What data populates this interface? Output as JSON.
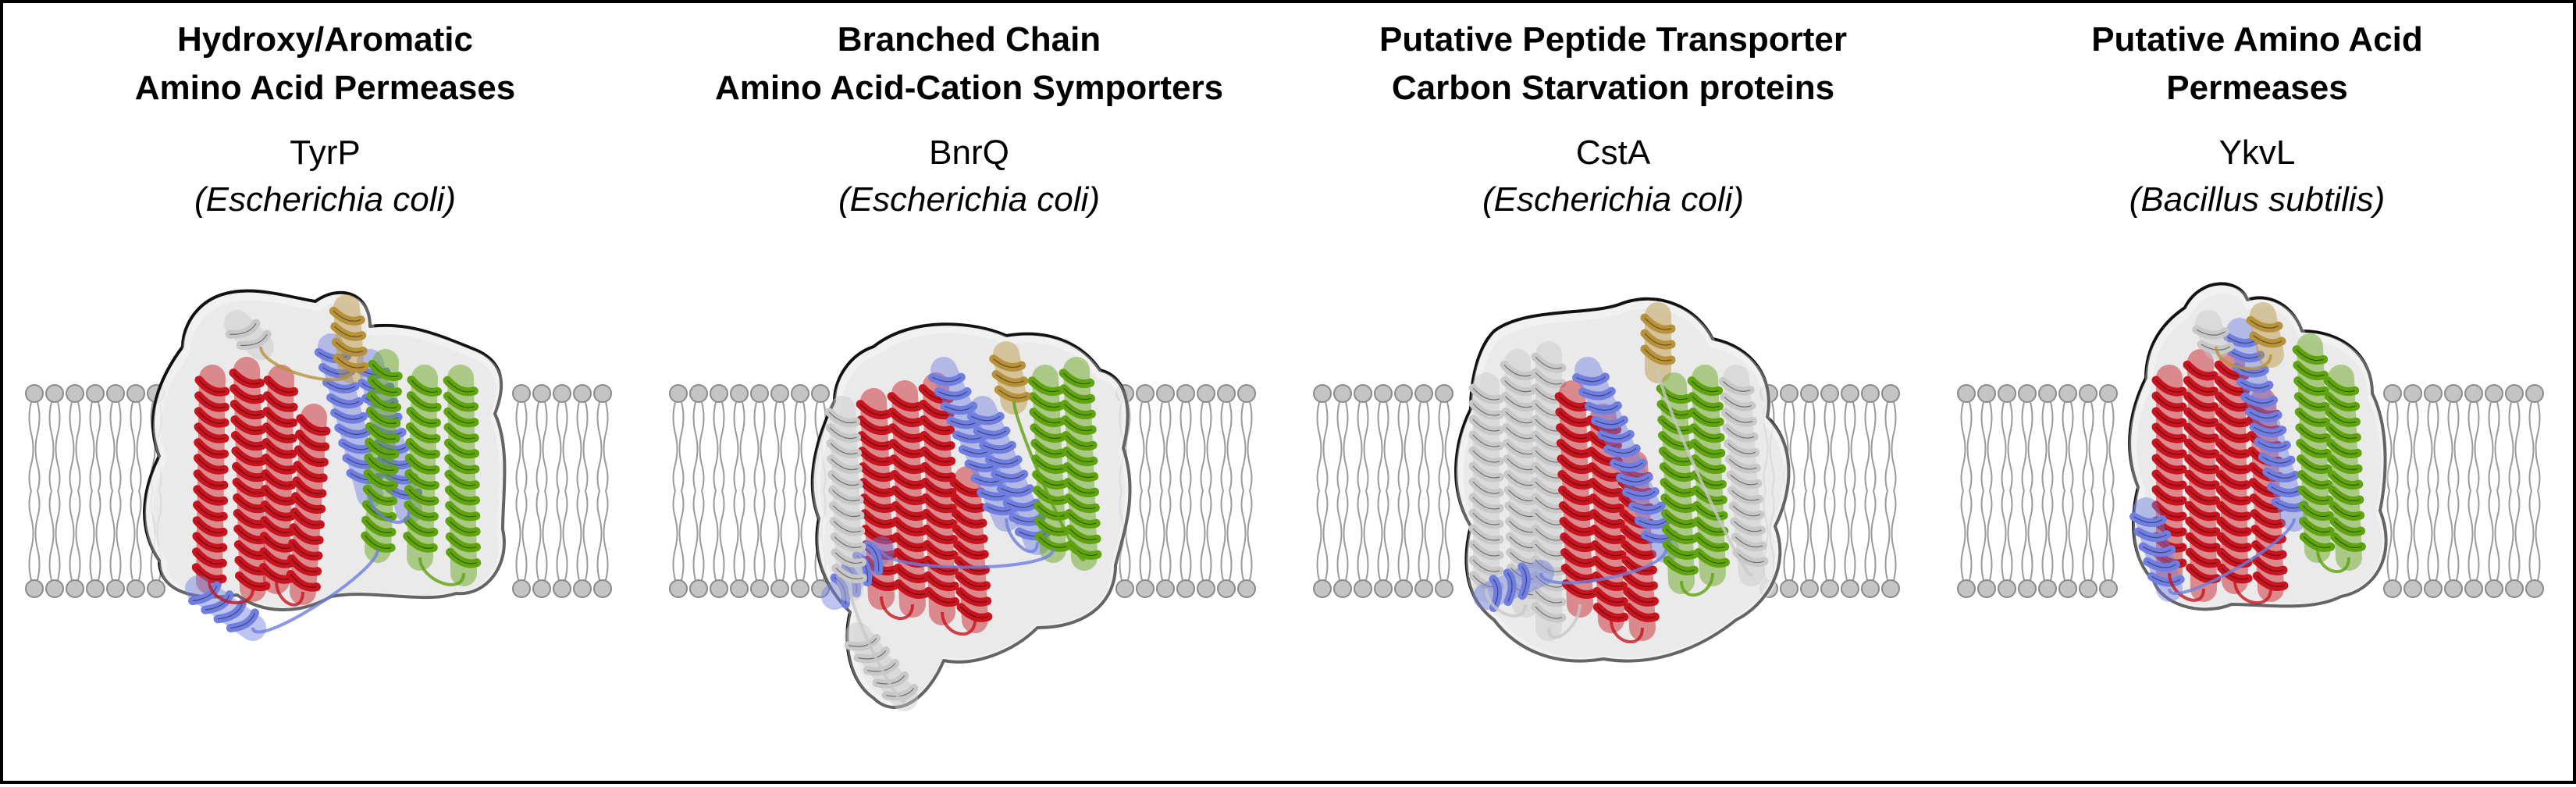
{
  "panels": [
    {
      "family_line1": "Hydroxy/Aromatic",
      "family_line2": "Amino Acid Permeases",
      "protein": "TyrP",
      "organism": "(Escherichia coli)",
      "variant": 0
    },
    {
      "family_line1": "Branched Chain",
      "family_line2": "Amino Acid-Cation Symporters",
      "protein": "BnrQ",
      "organism": "(Escherichia coli)",
      "variant": 1
    },
    {
      "family_line1": "Putative Peptide Transporter",
      "family_line2": "Carbon Starvation proteins",
      "protein": "CstA",
      "organism": "(Escherichia coli)",
      "variant": 2
    },
    {
      "family_line1": "Putative Amino Acid",
      "family_line2": "Permeases",
      "protein": "YkvL",
      "organism": "(Bacillus subtilis)",
      "variant": 3
    }
  ],
  "colors": {
    "helix_red": "#c8141e",
    "helix_blue": "#6f7ee0",
    "helix_green": "#5fa30f",
    "helix_gold": "#b8923a",
    "helix_grey": "#c8c8c8",
    "surface": "#e6e6e6",
    "lipid_head": "#c4c4c4"
  }
}
